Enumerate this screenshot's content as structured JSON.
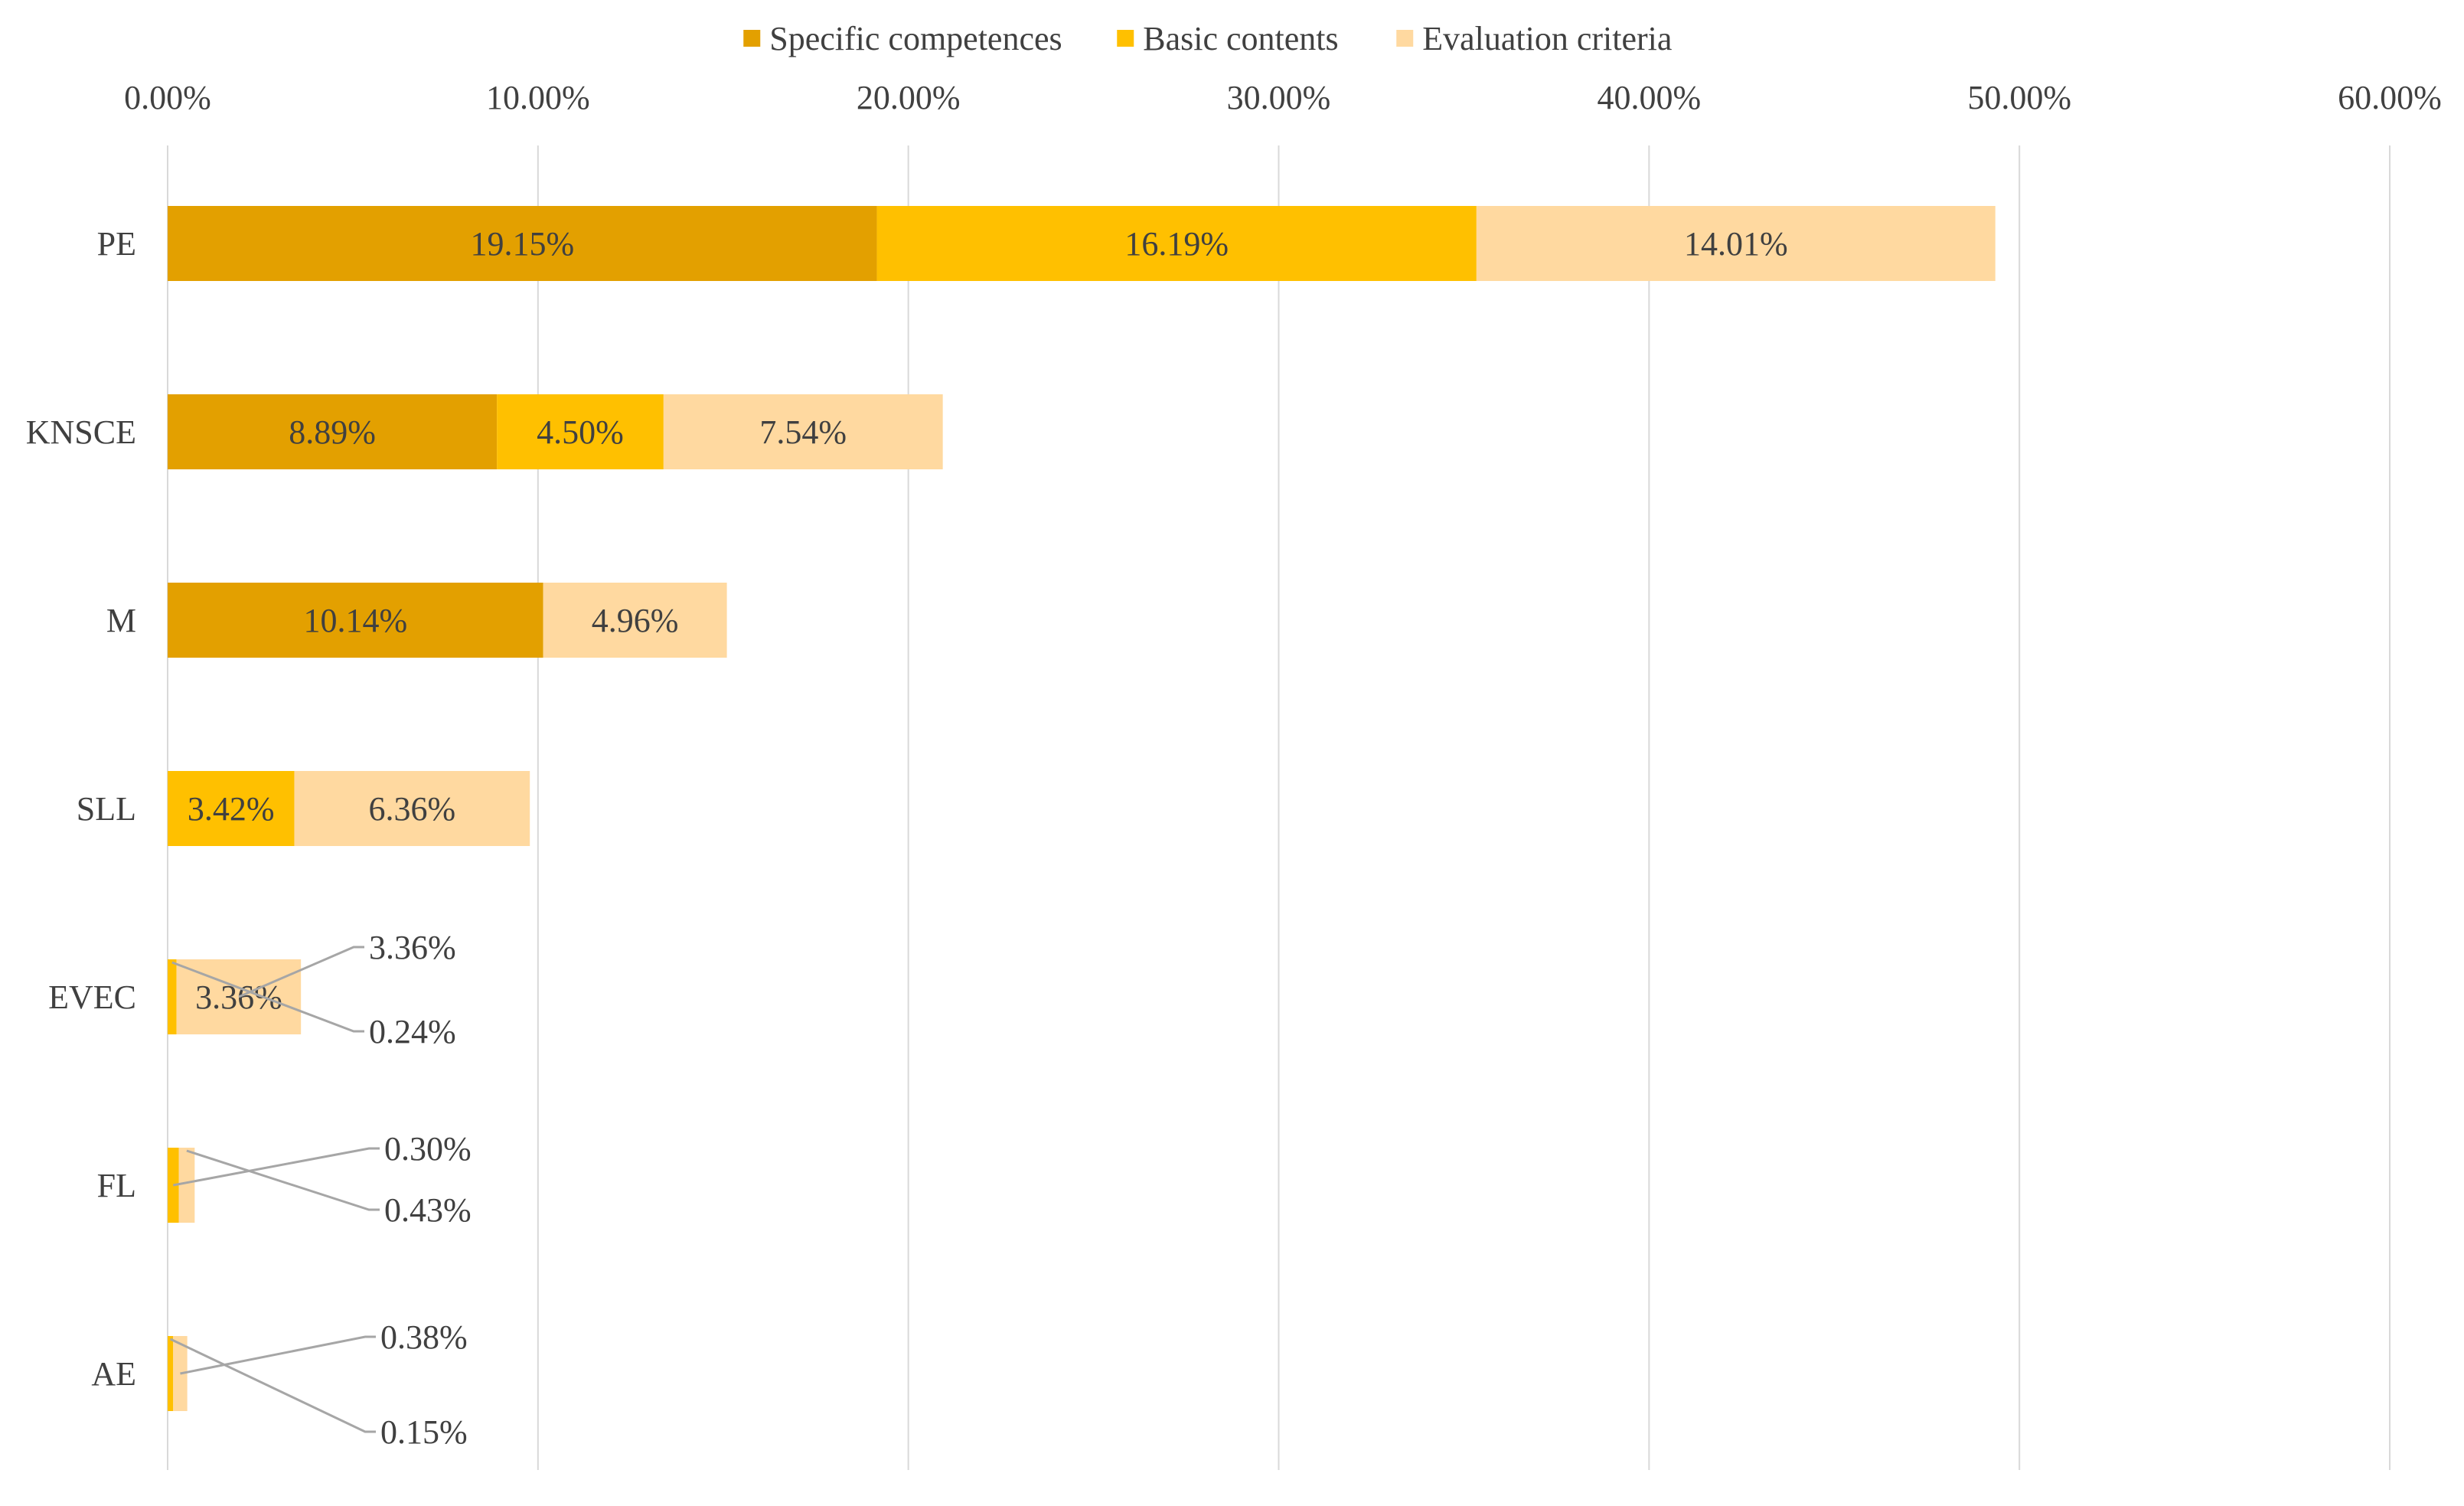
{
  "chart_data": {
    "type": "bar",
    "orientation": "horizontal",
    "stacked": true,
    "title": "",
    "xlabel": "",
    "ylabel": "",
    "xlim": [
      0,
      60
    ],
    "x_ticks": [
      "0.00%",
      "10.00%",
      "20.00%",
      "30.00%",
      "40.00%",
      "50.00%",
      "60.00%"
    ],
    "grid": "vertical",
    "legend_position": "top",
    "categories": [
      "PE",
      "KNSCE",
      "M",
      "SLL",
      "EVEC",
      "FL",
      "AE"
    ],
    "series": [
      {
        "name": "Specific competences",
        "color": "#E3A000",
        "values": [
          19.15,
          8.89,
          10.14,
          0,
          0,
          0,
          0
        ],
        "labels": [
          "19.15%",
          "8.89%",
          "10.14%",
          "",
          "",
          "",
          ""
        ]
      },
      {
        "name": "Basic contents",
        "color": "#FFC000",
        "values": [
          16.19,
          4.5,
          0,
          3.42,
          0.24,
          0.3,
          0.15
        ],
        "labels": [
          "16.19%",
          "4.50%",
          "",
          "3.42%",
          "0.24%",
          "0.30%",
          "0.15%"
        ]
      },
      {
        "name": "Evaluation criteria",
        "color": "#FFD9A0",
        "values": [
          14.01,
          7.54,
          4.96,
          6.36,
          3.36,
          0.43,
          0.38
        ],
        "labels": [
          "14.01%",
          "7.54%",
          "4.96%",
          "6.36%",
          "3.36%",
          "0.43%",
          "0.38%"
        ]
      }
    ],
    "colors": {
      "grid": "#D9D9D9",
      "text": "#404040",
      "leader": "#A6A6A6"
    }
  }
}
